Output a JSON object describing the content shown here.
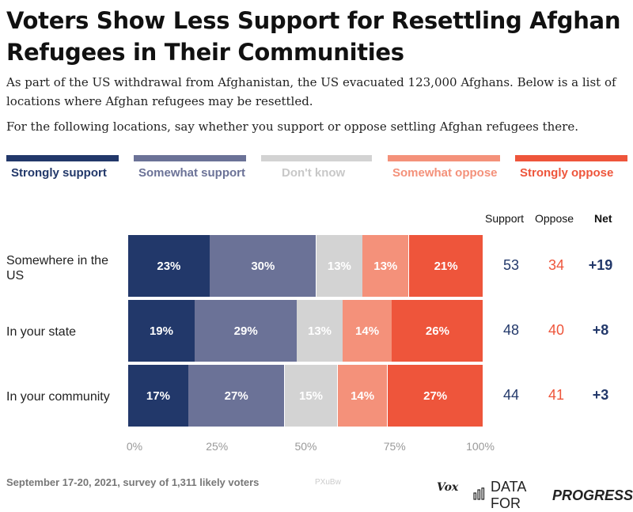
{
  "title": "Voters Show Less Support for Resettling Afghan Refugees in Their Communities",
  "subtitle1": "As part of the US withdrawal from Afghanistan, the US evacuated 123,000 Afghans. Below is a list of locations where Afghan refugees may be resettled.",
  "subtitle2": "For the following locations, say whether you support or oppose settling Afghan refugees there.",
  "legend": [
    {
      "label": "Strongly support",
      "color": "#22386a",
      "text_color": "#22386a"
    },
    {
      "label": "Somewhat support",
      "color": "#6b7297",
      "text_color": "#6b7297"
    },
    {
      "label": "Don't know",
      "color": "#d3d3d3",
      "text_color": "#c8c8c8"
    },
    {
      "label": "Somewhat oppose",
      "color": "#f4917a",
      "text_color": "#f4917a"
    },
    {
      "label": "Strongly oppose",
      "color": "#ee553b",
      "text_color": "#ee553b"
    }
  ],
  "columns": {
    "support": "Support",
    "oppose": "Oppose",
    "net": "Net"
  },
  "colors": {
    "support": "#22386a",
    "oppose": "#ee553b",
    "net": "#22386a"
  },
  "chart_data": {
    "type": "bar",
    "orientation": "horizontal-stacked",
    "categories": [
      "Somewhere in the US",
      "In your state",
      "In your community"
    ],
    "series": [
      {
        "name": "Strongly support",
        "values": [
          23,
          19,
          17
        ],
        "labels": [
          "23%",
          "19%",
          "17%"
        ]
      },
      {
        "name": "Somewhat support",
        "values": [
          30,
          29,
          27
        ],
        "labels": [
          "30%",
          "29%",
          "27%"
        ]
      },
      {
        "name": "Don't know",
        "values": [
          13,
          13,
          15
        ],
        "labels": [
          "13%",
          "13%",
          "15%"
        ]
      },
      {
        "name": "Somewhat oppose",
        "values": [
          13,
          14,
          14
        ],
        "labels": [
          "13%",
          "14%",
          "14%"
        ]
      },
      {
        "name": "Strongly oppose",
        "values": [
          21,
          26,
          27
        ],
        "labels": [
          "21%",
          "26%",
          "27%"
        ]
      }
    ],
    "support": [
      "53",
      "48",
      "44"
    ],
    "oppose": [
      "34",
      "40",
      "41"
    ],
    "net": [
      "+19",
      "+8",
      "+3"
    ],
    "xticks": [
      "0%",
      "25%",
      "50%",
      "75%",
      "100%"
    ],
    "xlim": [
      0,
      100
    ],
    "grid": false,
    "legend_position": "top"
  },
  "footer": "September 17-20, 2021, survey of 1,311 likely voters",
  "watermark": "PXuBw",
  "brand_vox": "Vox",
  "brand_dfp_1": "DATA FOR",
  "brand_dfp_2": "PROGRESS"
}
